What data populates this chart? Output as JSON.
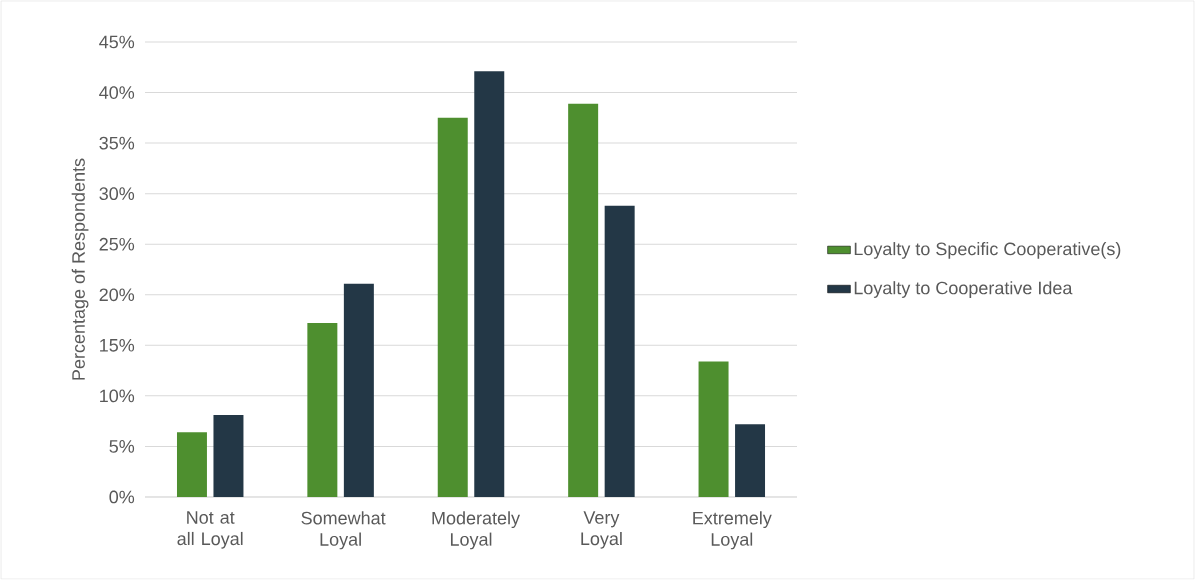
{
  "chart_data": {
    "type": "bar",
    "ylabel": "Percentage of Respondents",
    "categories": [
      "Not at all Loyal",
      "Somewhat Loyal",
      "Moderately Loyal",
      "Very Loyal",
      "Extremely Loyal"
    ],
    "series": [
      {
        "name": "Loyalty to Specific Cooperative(s)",
        "color": "#4e8f2f",
        "values": [
          6.4,
          17.2,
          37.5,
          38.9,
          13.4
        ]
      },
      {
        "name": "Loyalty to Cooperative Idea",
        "color": "#233746",
        "values": [
          8.1,
          21.1,
          42.1,
          28.8,
          7.2
        ]
      }
    ],
    "ylim": [
      0,
      45
    ],
    "yticks": [
      {
        "value": 0,
        "label": "0%"
      },
      {
        "value": 5,
        "label": "5%"
      },
      {
        "value": 10,
        "label": "10%"
      },
      {
        "value": 15,
        "label": "15%"
      },
      {
        "value": 20,
        "label": "20%"
      },
      {
        "value": 25,
        "label": "25%"
      },
      {
        "value": 30,
        "label": "30%"
      },
      {
        "value": 35,
        "label": "35%"
      },
      {
        "value": 40,
        "label": "40%"
      },
      {
        "value": 45,
        "label": "45%"
      }
    ],
    "grid": "y",
    "legend": "right"
  }
}
